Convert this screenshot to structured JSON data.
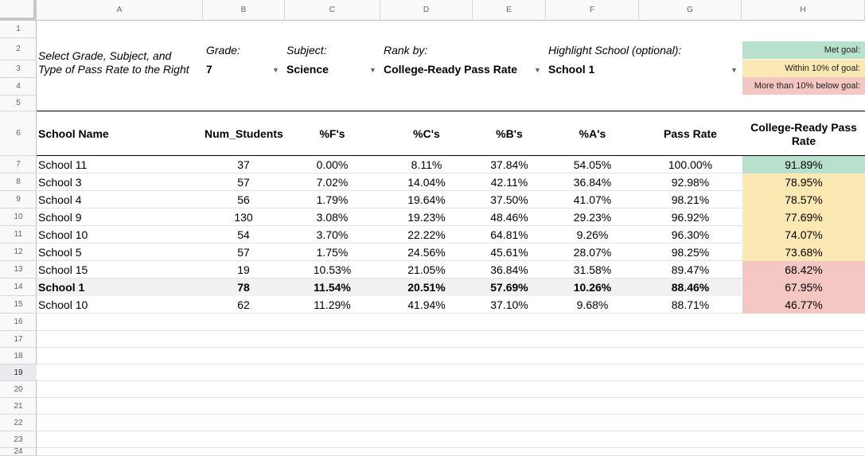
{
  "columns": [
    "A",
    "B",
    "C",
    "D",
    "E",
    "F",
    "G",
    "H"
  ],
  "rows": [
    "1",
    "2",
    "3",
    "4",
    "5",
    "6",
    "7",
    "8",
    "9",
    "10",
    "11",
    "12",
    "13",
    "14",
    "15",
    "16",
    "17",
    "18",
    "19",
    "20",
    "21",
    "22",
    "23",
    "24"
  ],
  "controls": {
    "instructions_line1": "Select Grade, Subject, and",
    "instructions_line2": "Type of Pass Rate to the Right",
    "grade_label": "Grade:",
    "grade_value": "7",
    "subject_label": "Subject:",
    "subject_value": "Science",
    "rank_label": "Rank by:",
    "rank_value": "College-Ready Pass Rate",
    "highlight_label": "Highlight School (optional):",
    "highlight_value": "School 1"
  },
  "legend": {
    "met": {
      "label": "Met goal:",
      "color": "#b7e1cd"
    },
    "within": {
      "label": "Within 10% of goal:",
      "color": "#fce8b2"
    },
    "below": {
      "label": "More than 10% below goal:",
      "color": "#f4c7c3"
    }
  },
  "table": {
    "headers": [
      "School Name",
      "Num_Students",
      "%F's",
      "%C's",
      "%B's",
      "%A's",
      "Pass Rate",
      "College-Ready Pass Rate"
    ],
    "rows": [
      {
        "school": "School 11",
        "num": "37",
        "f": "0.00%",
        "c": "8.11%",
        "b": "37.84%",
        "a": "54.05%",
        "pass": "100.00%",
        "crpr": "91.89%",
        "status": "met",
        "highlight": false
      },
      {
        "school": "School 3",
        "num": "57",
        "f": "7.02%",
        "c": "14.04%",
        "b": "42.11%",
        "a": "36.84%",
        "pass": "92.98%",
        "crpr": "78.95%",
        "status": "within",
        "highlight": false
      },
      {
        "school": "School 4",
        "num": "56",
        "f": "1.79%",
        "c": "19.64%",
        "b": "37.50%",
        "a": "41.07%",
        "pass": "98.21%",
        "crpr": "78.57%",
        "status": "within",
        "highlight": false
      },
      {
        "school": "School 9",
        "num": "130",
        "f": "3.08%",
        "c": "19.23%",
        "b": "48.46%",
        "a": "29.23%",
        "pass": "96.92%",
        "crpr": "77.69%",
        "status": "within",
        "highlight": false
      },
      {
        "school": "School 10",
        "num": "54",
        "f": "3.70%",
        "c": "22.22%",
        "b": "64.81%",
        "a": "9.26%",
        "pass": "96.30%",
        "crpr": "74.07%",
        "status": "within",
        "highlight": false
      },
      {
        "school": "School 5",
        "num": "57",
        "f": "1.75%",
        "c": "24.56%",
        "b": "45.61%",
        "a": "28.07%",
        "pass": "98.25%",
        "crpr": "73.68%",
        "status": "within",
        "highlight": false
      },
      {
        "school": "School 15",
        "num": "19",
        "f": "10.53%",
        "c": "21.05%",
        "b": "36.84%",
        "a": "31.58%",
        "pass": "89.47%",
        "crpr": "68.42%",
        "status": "below",
        "highlight": false
      },
      {
        "school": "School 1",
        "num": "78",
        "f": "11.54%",
        "c": "20.51%",
        "b": "57.69%",
        "a": "10.26%",
        "pass": "88.46%",
        "crpr": "67.95%",
        "status": "below",
        "highlight": true
      },
      {
        "school": "School 10",
        "num": "62",
        "f": "11.29%",
        "c": "41.94%",
        "b": "37.10%",
        "a": "9.68%",
        "pass": "88.71%",
        "crpr": "46.77%",
        "status": "below",
        "highlight": false
      }
    ]
  },
  "selected_row": "19"
}
